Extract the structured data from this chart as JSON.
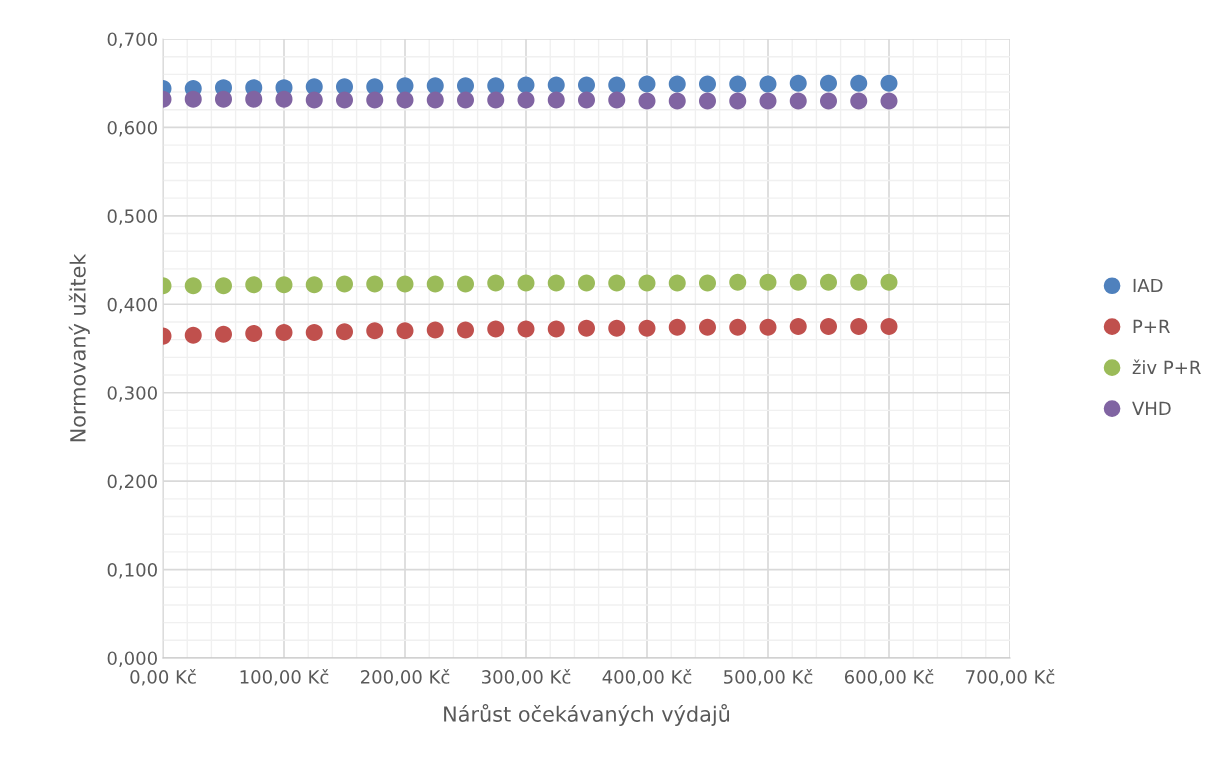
{
  "chart_data": {
    "type": "scatter",
    "xlabel": "Nárůst očekávaných výdajů",
    "ylabel": "Normovaný užitek",
    "x": [
      0,
      25,
      50,
      75,
      100,
      125,
      150,
      175,
      200,
      225,
      250,
      275,
      300,
      325,
      350,
      375,
      400,
      425,
      450,
      475,
      500,
      525,
      550,
      575,
      600
    ],
    "series": [
      {
        "name": "IAD",
        "color": "#4f81bd",
        "values": [
          0.644,
          0.644,
          0.645,
          0.645,
          0.645,
          0.646,
          0.646,
          0.646,
          0.647,
          0.647,
          0.647,
          0.647,
          0.648,
          0.648,
          0.648,
          0.648,
          0.649,
          0.649,
          0.649,
          0.649,
          0.649,
          0.65,
          0.65,
          0.65,
          0.65
        ]
      },
      {
        "name": "P+R",
        "color": "#c0504d",
        "values": [
          0.364,
          0.365,
          0.366,
          0.367,
          0.368,
          0.368,
          0.369,
          0.37,
          0.37,
          0.371,
          0.371,
          0.372,
          0.372,
          0.372,
          0.373,
          0.373,
          0.373,
          0.374,
          0.374,
          0.374,
          0.374,
          0.375,
          0.375,
          0.375,
          0.375
        ]
      },
      {
        "name": "živ P+R",
        "color": "#9bbb59",
        "values": [
          0.421,
          0.421,
          0.421,
          0.422,
          0.422,
          0.422,
          0.423,
          0.423,
          0.423,
          0.423,
          0.423,
          0.424,
          0.424,
          0.424,
          0.424,
          0.424,
          0.424,
          0.424,
          0.424,
          0.425,
          0.425,
          0.425,
          0.425,
          0.425,
          0.425
        ]
      },
      {
        "name": "VHD",
        "color": "#8064a2",
        "values": [
          0.632,
          0.632,
          0.632,
          0.632,
          0.632,
          0.631,
          0.631,
          0.631,
          0.631,
          0.631,
          0.631,
          0.631,
          0.631,
          0.631,
          0.631,
          0.631,
          0.63,
          0.63,
          0.63,
          0.63,
          0.63,
          0.63,
          0.63,
          0.63,
          0.63
        ]
      }
    ],
    "xlim": [
      0,
      700
    ],
    "xticks": [
      {
        "value": 0,
        "label": "0,00 Kč"
      },
      {
        "value": 100,
        "label": "100,00 Kč"
      },
      {
        "value": 200,
        "label": "200,00 Kč"
      },
      {
        "value": 300,
        "label": "300,00 Kč"
      },
      {
        "value": 400,
        "label": "400,00 Kč"
      },
      {
        "value": 500,
        "label": "500,00 Kč"
      },
      {
        "value": 600,
        "label": "600,00 Kč"
      },
      {
        "value": 700,
        "label": "700,00 Kč"
      }
    ],
    "ylim": [
      0,
      0.7
    ],
    "yticks": [
      {
        "value": 0,
        "label": "0,000"
      },
      {
        "value": 0.1,
        "label": "0,100"
      },
      {
        "value": 0.2,
        "label": "0,200"
      },
      {
        "value": 0.3,
        "label": "0,300"
      },
      {
        "value": 0.4,
        "label": "0,400"
      },
      {
        "value": 0.5,
        "label": "0,500"
      },
      {
        "value": 0.6,
        "label": "0,600"
      },
      {
        "value": 0.7,
        "label": "0,700"
      }
    ],
    "grid": true,
    "legend": "right",
    "marker": "circle"
  }
}
